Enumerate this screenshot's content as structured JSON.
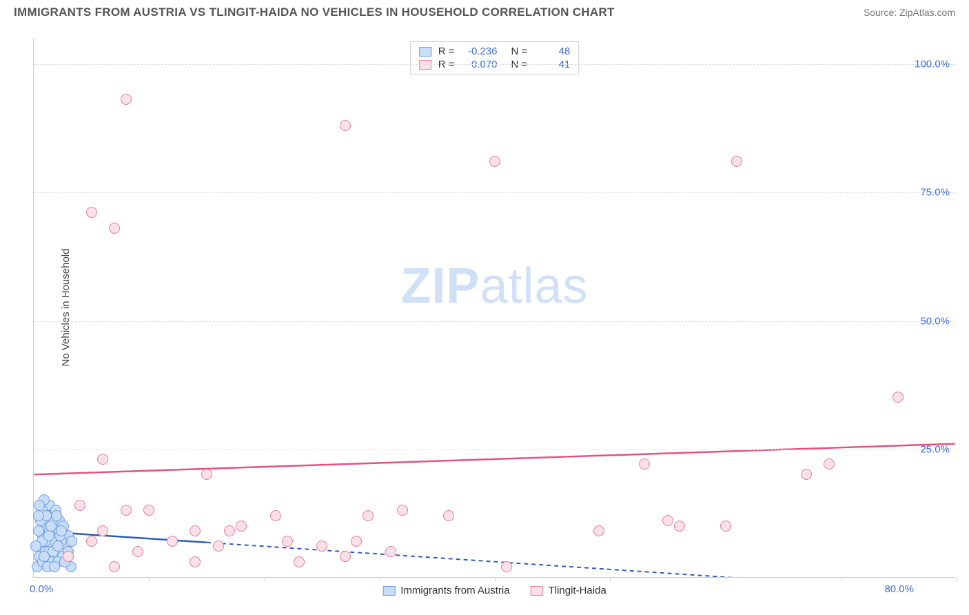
{
  "header": {
    "title": "IMMIGRANTS FROM AUSTRIA VS TLINGIT-HAIDA NO VEHICLES IN HOUSEHOLD CORRELATION CHART",
    "source": "Source: ZipAtlas.com"
  },
  "watermark": {
    "bold": "ZIP",
    "rest": "atlas"
  },
  "chart": {
    "type": "scatter",
    "ylabel": "No Vehicles in Household",
    "xlim": [
      0,
      80
    ],
    "ylim": [
      0,
      105
    ],
    "xtick_step": 10,
    "ytick_step": 25,
    "ytick_labels": [
      "25.0%",
      "50.0%",
      "75.0%",
      "100.0%"
    ],
    "xlabel_min": "0.0%",
    "xlabel_max": "80.0%",
    "background_color": "#ffffff",
    "grid_color": "#dddddd",
    "axis_color": "#cccccc",
    "tick_label_color": "#3b6fd6",
    "label_fontsize": 15,
    "point_radius": 8,
    "series": [
      {
        "name": "Immigrants from Austria",
        "fill": "#c9ddf6",
        "stroke": "#6a9de8",
        "R": "-0.236",
        "N": "48",
        "trend": {
          "color": "#2e5bb7",
          "y_at_x0": 9,
          "y_at_xmax": -3,
          "dash_after_x": 15
        },
        "points": [
          [
            0.3,
            2
          ],
          [
            0.5,
            4
          ],
          [
            0.6,
            6
          ],
          [
            0.8,
            8
          ],
          [
            1.0,
            10
          ],
          [
            1.2,
            12
          ],
          [
            1.4,
            14
          ],
          [
            1.0,
            5
          ],
          [
            1.5,
            3
          ],
          [
            1.8,
            7
          ],
          [
            2.0,
            9
          ],
          [
            2.2,
            11
          ],
          [
            2.5,
            4
          ],
          [
            2.8,
            6
          ],
          [
            3.0,
            8
          ],
          [
            3.2,
            2
          ],
          [
            0.7,
            13
          ],
          [
            0.9,
            15
          ],
          [
            1.1,
            9
          ],
          [
            1.3,
            5
          ],
          [
            1.6,
            11
          ],
          [
            1.9,
            13
          ],
          [
            2.1,
            3
          ],
          [
            2.4,
            7
          ],
          [
            0.4,
            9
          ],
          [
            0.6,
            11
          ],
          [
            0.8,
            3
          ],
          [
            1.0,
            7
          ],
          [
            1.2,
            2
          ],
          [
            1.4,
            9
          ],
          [
            1.7,
            5
          ],
          [
            2.0,
            12
          ],
          [
            2.3,
            8
          ],
          [
            2.6,
            10
          ],
          [
            0.5,
            14
          ],
          [
            0.7,
            7
          ],
          [
            0.9,
            4
          ],
          [
            1.1,
            12
          ],
          [
            1.3,
            8
          ],
          [
            1.5,
            10
          ],
          [
            1.8,
            2
          ],
          [
            2.1,
            6
          ],
          [
            2.4,
            9
          ],
          [
            2.7,
            3
          ],
          [
            3.0,
            5
          ],
          [
            3.3,
            7
          ],
          [
            0.2,
            6
          ],
          [
            0.4,
            12
          ]
        ]
      },
      {
        "name": "Tlingit-Haida",
        "fill": "#fbe0e7",
        "stroke": "#e87ca0",
        "R": "0.070",
        "N": "41",
        "trend": {
          "color": "#e3527e",
          "y_at_x0": 20,
          "y_at_xmax": 26,
          "dash_after_x": null
        },
        "points": [
          [
            8,
            93
          ],
          [
            5,
            71
          ],
          [
            7,
            68
          ],
          [
            27,
            88
          ],
          [
            40,
            81
          ],
          [
            61,
            81
          ],
          [
            6,
            23
          ],
          [
            15,
            20
          ],
          [
            8,
            13
          ],
          [
            10,
            13
          ],
          [
            17,
            9
          ],
          [
            14,
            9
          ],
          [
            16,
            6
          ],
          [
            22,
            7
          ],
          [
            25,
            6
          ],
          [
            28,
            7
          ],
          [
            32,
            13
          ],
          [
            36,
            12
          ],
          [
            27,
            4
          ],
          [
            29,
            12
          ],
          [
            41,
            2
          ],
          [
            53,
            22
          ],
          [
            67,
            20
          ],
          [
            69,
            22
          ],
          [
            75,
            35
          ],
          [
            56,
            10
          ],
          [
            49,
            9
          ],
          [
            55,
            11
          ],
          [
            60,
            10
          ],
          [
            14,
            3
          ],
          [
            18,
            10
          ],
          [
            21,
            12
          ],
          [
            23,
            3
          ],
          [
            31,
            5
          ],
          [
            7,
            2
          ],
          [
            5,
            7
          ],
          [
            9,
            5
          ],
          [
            12,
            7
          ],
          [
            4,
            14
          ],
          [
            3,
            4
          ],
          [
            6,
            9
          ]
        ]
      }
    ],
    "stats_box": {
      "labels": {
        "R": "R =",
        "N": "N ="
      }
    },
    "bottom_legend": [
      {
        "label": "Immigrants from Austria",
        "series": 0
      },
      {
        "label": "Tlingit-Haida",
        "series": 1
      }
    ]
  }
}
